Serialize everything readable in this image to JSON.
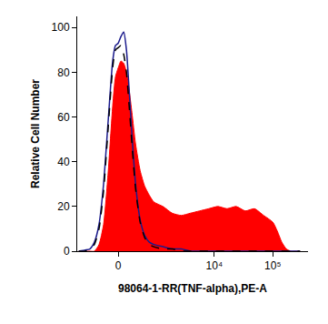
{
  "chart_data": {
    "type": "area",
    "x_label": "98064-1-RR(TNF-alpha),PE-A",
    "y_label": "Relative Cell Number",
    "x": [
      -1028,
      -772,
      -622,
      -494,
      -379,
      -278,
      -186,
      -100,
      -49,
      0,
      49,
      100,
      151,
      203,
      259,
      337,
      446,
      569,
      711,
      873,
      1289,
      1883,
      2715,
      3907,
      5603,
      8043,
      11516,
      16543,
      23673,
      33909,
      48625,
      69693,
      99946,
      119500,
      142900,
      170900,
      204300,
      244500,
      292500
    ],
    "series": [
      {
        "type": "area",
        "color": "#ff0000",
        "values": [
          0,
          0,
          0,
          0,
          3,
          12,
          35,
          65,
          78,
          82,
          85,
          84,
          80,
          72,
          62,
          48,
          36,
          29,
          25,
          22,
          20,
          17,
          16,
          17,
          18,
          19,
          20,
          19,
          20,
          18,
          19,
          16,
          13,
          9,
          4,
          1,
          0,
          0,
          0
        ]
      },
      {
        "type": "line",
        "color": "#1a1a8c",
        "values": [
          0,
          0.5,
          1,
          4,
          12,
          30,
          58,
          85,
          92,
          93,
          96,
          98,
          90,
          72,
          52,
          30,
          14,
          7,
          4,
          3,
          2,
          1,
          1,
          0,
          0,
          0,
          0,
          0,
          0,
          0,
          0,
          0,
          0,
          0,
          0,
          0,
          0,
          0,
          0
        ]
      },
      {
        "type": "line",
        "color": "#000000",
        "line_style": "dashed",
        "values": [
          0,
          0,
          1,
          3,
          10,
          27,
          55,
          82,
          90,
          91,
          92,
          88,
          80,
          65,
          48,
          28,
          13,
          6,
          3,
          2,
          1,
          1,
          0,
          0,
          0,
          0,
          0,
          0,
          0,
          0,
          0,
          0,
          0,
          0,
          0,
          0,
          0,
          0,
          0
        ]
      }
    ],
    "xlim": [
      -1100,
      400000
    ],
    "xticks": [
      0,
      {
        "value": 10000,
        "label": "10⁴"
      },
      {
        "value": 100000,
        "label": "10⁵"
      }
    ],
    "ylim": [
      0,
      105
    ],
    "yticks": [
      0,
      20,
      40,
      60,
      80,
      100
    ],
    "grid": false
  }
}
